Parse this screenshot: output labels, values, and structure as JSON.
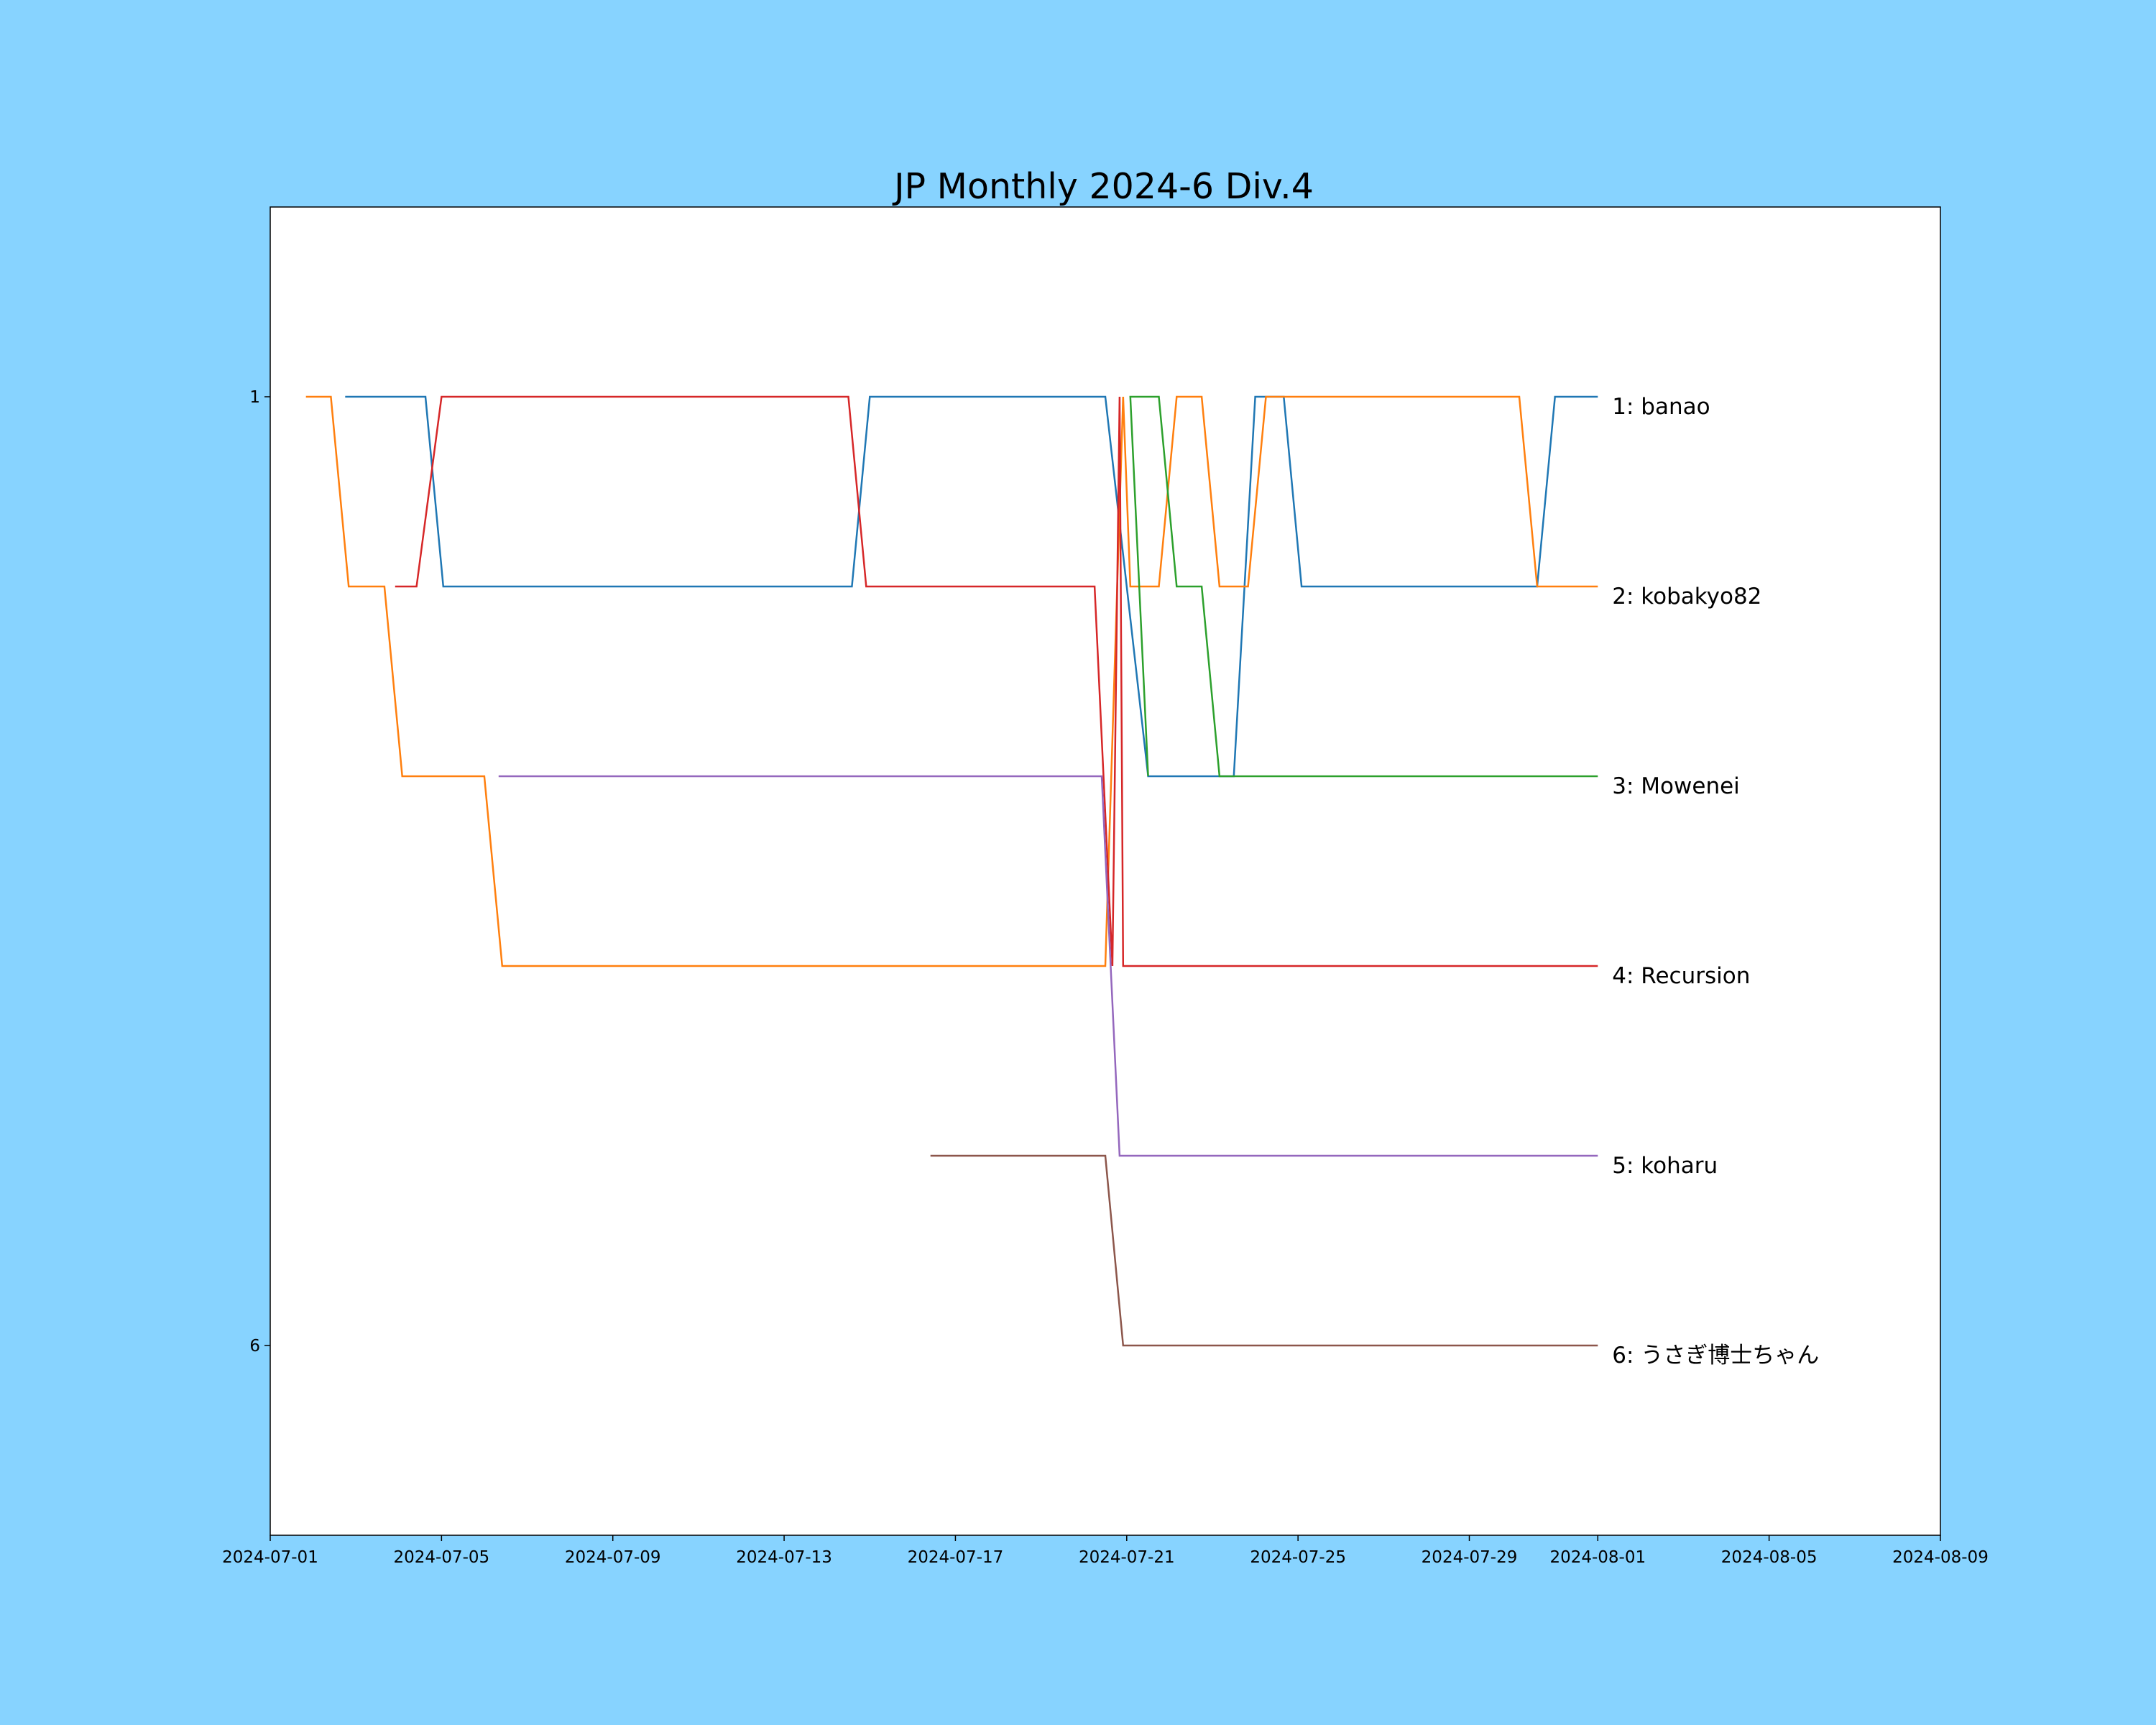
{
  "chart_data": {
    "type": "line",
    "title": "JP Monthly 2024-6 Div.4",
    "xlabel": "",
    "ylabel": "",
    "background_color": "#87d3ff",
    "plot_background": "#ffffff",
    "grid": false,
    "legend": "none",
    "y_inverted": true,
    "ylim": [
      0,
      7
    ],
    "xlim": [
      "2024-07-01",
      "2024-08-09"
    ],
    "x_ticks": [
      "2024-07-01",
      "2024-07-05",
      "2024-07-09",
      "2024-07-13",
      "2024-07-17",
      "2024-07-21",
      "2024-07-25",
      "2024-07-29",
      "2024-08-01",
      "2024-08-05",
      "2024-08-09"
    ],
    "y_ticks": [
      1,
      6
    ],
    "y_tick_labels": [
      "1",
      "6"
    ],
    "series": [
      {
        "label": "1: banao",
        "color": "#1f77b4",
        "points": [
          [
            "2024-07-02T18:00",
            1
          ],
          [
            "2024-07-04T15:00",
            1
          ],
          [
            "2024-07-05T01:00",
            2
          ],
          [
            "2024-07-14T14:00",
            2
          ],
          [
            "2024-07-15T00:00",
            1
          ],
          [
            "2024-07-20T12:00",
            1
          ],
          [
            "2024-07-21T12:00",
            3
          ],
          [
            "2024-07-23T12:00",
            3
          ],
          [
            "2024-07-24T00:00",
            1
          ],
          [
            "2024-07-24T16:00",
            1
          ],
          [
            "2024-07-25T02:00",
            2
          ],
          [
            "2024-07-30T14:00",
            2
          ],
          [
            "2024-07-31T00:00",
            1
          ],
          [
            "2024-08-01T00:00",
            1
          ]
        ]
      },
      {
        "label": "2: kobakyo82",
        "color": "#ff7f0e",
        "points": [
          [
            "2024-07-01T20:00",
            1
          ],
          [
            "2024-07-02T10:00",
            1
          ],
          [
            "2024-07-02T20:00",
            2
          ],
          [
            "2024-07-03T16:00",
            2
          ],
          [
            "2024-07-04T02:00",
            3
          ],
          [
            "2024-07-06T00:00",
            3
          ],
          [
            "2024-07-06T10:00",
            4
          ],
          [
            "2024-07-20T12:00",
            4
          ],
          [
            "2024-07-20T22:00",
            1
          ],
          [
            "2024-07-21T02:00",
            2
          ],
          [
            "2024-07-21T18:00",
            2
          ],
          [
            "2024-07-22T04:00",
            1
          ],
          [
            "2024-07-22T18:00",
            1
          ],
          [
            "2024-07-23T04:00",
            2
          ],
          [
            "2024-07-23T20:00",
            2
          ],
          [
            "2024-07-24T06:00",
            1
          ],
          [
            "2024-07-30T04:00",
            1
          ],
          [
            "2024-07-30T14:00",
            2
          ],
          [
            "2024-08-01T00:00",
            2
          ]
        ]
      },
      {
        "label": "3: Mowenei",
        "color": "#2ca02c",
        "points": [
          [
            "2024-07-21T12:00",
            3
          ],
          [
            "2024-07-21T02:00",
            1
          ],
          [
            "2024-07-21T18:00",
            1
          ],
          [
            "2024-07-22T04:00",
            2
          ],
          [
            "2024-07-22T18:00",
            2
          ],
          [
            "2024-07-23T04:00",
            3
          ],
          [
            "2024-08-01T00:00",
            3
          ]
        ]
      },
      {
        "label": "4: Recursion",
        "color": "#d62728",
        "points": [
          [
            "2024-07-03T22:00",
            2
          ],
          [
            "2024-07-04T10:00",
            2
          ],
          [
            "2024-07-05T00:00",
            1
          ],
          [
            "2024-07-14T12:00",
            1
          ],
          [
            "2024-07-14T22:00",
            2
          ],
          [
            "2024-07-20T06:00",
            2
          ],
          [
            "2024-07-20T16:00",
            4
          ],
          [
            "2024-07-20T20:00",
            1
          ],
          [
            "2024-07-20T22:00",
            4
          ],
          [
            "2024-08-01T00:00",
            4
          ]
        ]
      },
      {
        "label": "5: koharu",
        "color": "#9467bd",
        "points": [
          [
            "2024-07-06T08:00",
            3
          ],
          [
            "2024-07-20T10:00",
            3
          ],
          [
            "2024-07-20T20:00",
            5
          ],
          [
            "2024-08-01T00:00",
            5
          ]
        ]
      },
      {
        "label": "6: うさぎ博士ちゃん",
        "color": "#8c564b",
        "points": [
          [
            "2024-07-16T10:00",
            5
          ],
          [
            "2024-07-20T12:00",
            5
          ],
          [
            "2024-07-20T22:00",
            6
          ],
          [
            "2024-08-01T00:00",
            6
          ]
        ]
      }
    ]
  }
}
